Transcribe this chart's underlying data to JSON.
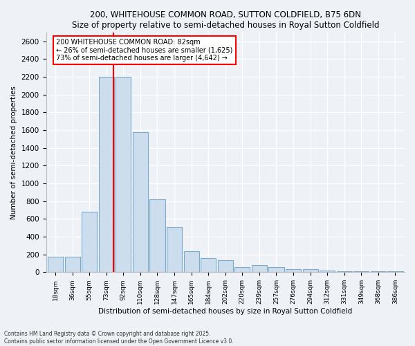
{
  "title1": "200, WHITEHOUSE COMMON ROAD, SUTTON COLDFIELD, B75 6DN",
  "title2": "Size of property relative to semi-detached houses in Royal Sutton Coldfield",
  "xlabel": "Distribution of semi-detached houses by size in Royal Sutton Coldfield",
  "ylabel": "Number of semi-detached properties",
  "categories": [
    "18sqm",
    "36sqm",
    "55sqm",
    "73sqm",
    "92sqm",
    "110sqm",
    "128sqm",
    "147sqm",
    "165sqm",
    "184sqm",
    "202sqm",
    "220sqm",
    "239sqm",
    "257sqm",
    "276sqm",
    "294sqm",
    "312sqm",
    "331sqm",
    "349sqm",
    "368sqm",
    "386sqm"
  ],
  "values": [
    175,
    175,
    680,
    2200,
    2200,
    1575,
    820,
    510,
    240,
    155,
    135,
    55,
    80,
    55,
    35,
    35,
    18,
    10,
    10,
    10,
    10
  ],
  "bar_color": "#ccdded",
  "bar_edge_color": "#7aabcc",
  "property_line_x": 3.42,
  "annotation_text": "200 WHITEHOUSE COMMON ROAD: 82sqm\n← 26% of semi-detached houses are smaller (1,625)\n73% of semi-detached houses are larger (4,642) →",
  "annotation_box_color": "white",
  "annotation_box_edge": "red",
  "vline_color": "red",
  "background_color": "#eef2f7",
  "ylim": [
    0,
    2700
  ],
  "yticks": [
    0,
    200,
    400,
    600,
    800,
    1000,
    1200,
    1400,
    1600,
    1800,
    2000,
    2200,
    2400,
    2600
  ],
  "footer1": "Contains HM Land Registry data © Crown copyright and database right 2025.",
  "footer2": "Contains public sector information licensed under the Open Government Licence v3.0."
}
